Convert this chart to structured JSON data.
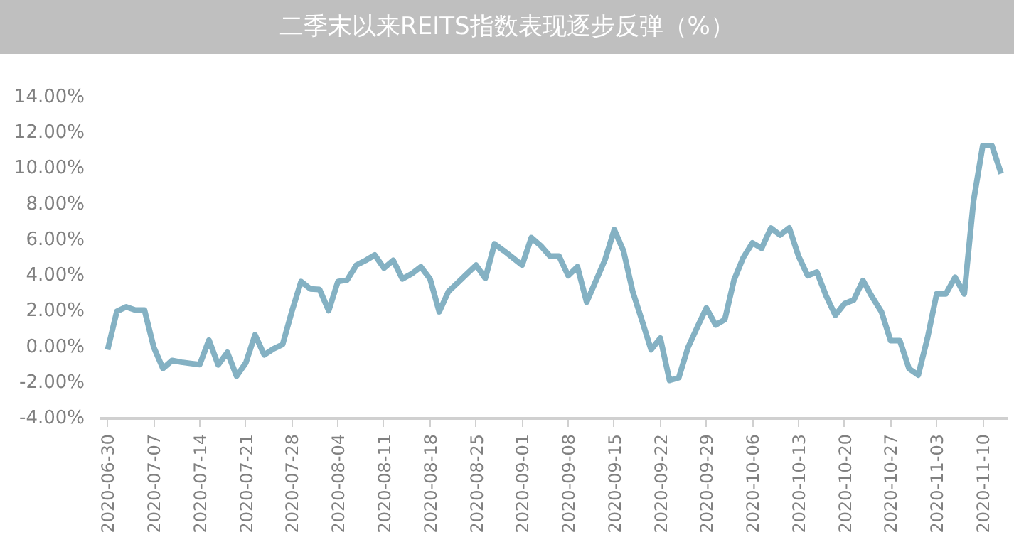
{
  "chart_data": {
    "type": "line",
    "title": "二季末以来REITS指数表现逐步反弹（%）",
    "categories": [
      "2020-06-30",
      null,
      null,
      null,
      null,
      "2020-07-07",
      null,
      null,
      null,
      null,
      "2020-07-14",
      null,
      null,
      null,
      null,
      "2020-07-21",
      null,
      null,
      null,
      null,
      "2020-07-28",
      null,
      null,
      null,
      null,
      "2020-08-04",
      null,
      null,
      null,
      null,
      "2020-08-11",
      null,
      null,
      null,
      null,
      "2020-08-18",
      null,
      null,
      null,
      null,
      "2020-08-25",
      null,
      null,
      null,
      null,
      "2020-09-01",
      null,
      null,
      null,
      null,
      "2020-09-08",
      null,
      null,
      null,
      null,
      "2020-09-15",
      null,
      null,
      null,
      null,
      "2020-09-22",
      null,
      null,
      null,
      null,
      "2020-09-29",
      null,
      null,
      null,
      null,
      "2020-10-06",
      null,
      null,
      null,
      null,
      "2020-10-13",
      null,
      null,
      null,
      null,
      "2020-10-20",
      null,
      null,
      null,
      null,
      "2020-10-27",
      null,
      null,
      null,
      null,
      "2020-11-03",
      null,
      null,
      null,
      null,
      "2020-11-10",
      null,
      null
    ],
    "series": [
      {
        "color": "#84b1c3",
        "values": [
          -0.15,
          2.0,
          2.25,
          2.07,
          2.07,
          0.0,
          -1.2,
          -0.75,
          -0.85,
          -0.92,
          -0.98,
          0.39,
          -1.0,
          -0.3,
          -1.63,
          -0.89,
          0.68,
          -0.44,
          -0.1,
          0.15,
          2.0,
          3.67,
          3.26,
          3.23,
          2.04,
          3.67,
          3.76,
          4.59,
          4.85,
          5.16,
          4.42,
          4.86,
          3.82,
          4.1,
          4.5,
          3.82,
          1.98,
          3.11,
          3.6,
          4.1,
          4.59,
          3.85,
          5.78,
          5.4,
          5.0,
          4.59,
          6.13,
          5.69,
          5.1,
          5.1,
          4.0,
          4.5,
          2.52,
          3.7,
          4.9,
          6.58,
          5.39,
          3.11,
          1.5,
          -0.15,
          0.5,
          -1.87,
          -1.72,
          -0.03,
          1.1,
          2.19,
          1.24,
          1.54,
          3.76,
          5.01,
          5.84,
          5.54,
          6.67,
          6.28,
          6.67,
          5.1,
          4.0,
          4.2,
          2.87,
          1.78,
          2.43,
          2.64,
          3.73,
          2.8,
          1.98,
          0.36,
          0.36,
          -1.21,
          -1.57,
          0.5,
          2.98,
          2.98,
          3.91,
          2.98,
          8.18,
          11.29,
          11.29,
          9.72
        ]
      }
    ],
    "ylim": [
      -4,
      14
    ],
    "yticks": [
      {
        "value": -4,
        "label": "-4.00%"
      },
      {
        "value": -2,
        "label": "-2.00%"
      },
      {
        "value": 0,
        "label": "0.00%"
      },
      {
        "value": 2,
        "label": "2.00%"
      },
      {
        "value": 4,
        "label": "4.00%"
      },
      {
        "value": 6,
        "label": "6.00%"
      },
      {
        "value": 8,
        "label": "8.00%"
      },
      {
        "value": 10,
        "label": "10.00%"
      },
      {
        "value": 12,
        "label": "12.00%"
      },
      {
        "value": 14,
        "label": "14.00%"
      }
    ],
    "marker": "none",
    "line_style": "solid"
  }
}
